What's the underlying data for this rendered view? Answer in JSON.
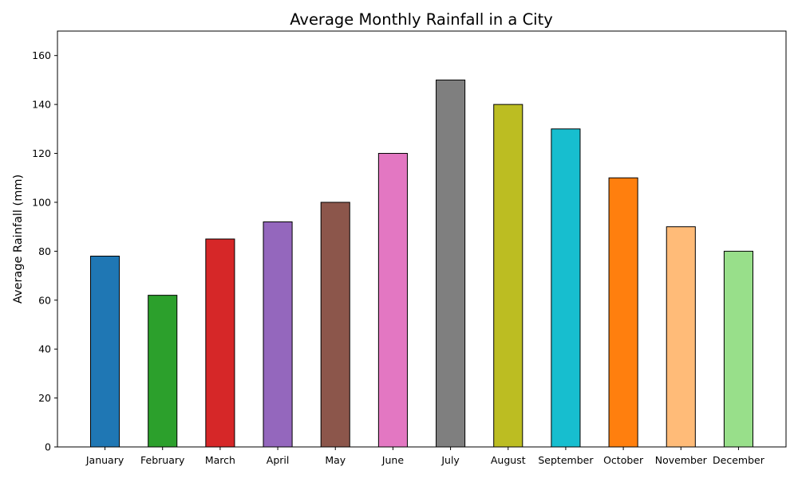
{
  "chart_data": {
    "type": "bar",
    "title": "Average Monthly Rainfall in a City",
    "xlabel": "",
    "ylabel": "Average Rainfall (mm)",
    "categories": [
      "January",
      "February",
      "March",
      "April",
      "May",
      "June",
      "July",
      "August",
      "September",
      "October",
      "November",
      "December"
    ],
    "values": [
      78,
      62,
      85,
      92,
      100,
      120,
      150,
      140,
      130,
      110,
      90,
      80
    ],
    "colors": [
      "#1f77b4",
      "#2ca02c",
      "#d62728",
      "#9467bd",
      "#8c564b",
      "#e377c2",
      "#7f7f7f",
      "#bcbd22",
      "#17becf",
      "#ff7f0e",
      "#ffbb78",
      "#98df8a"
    ],
    "ylim": [
      0,
      170
    ],
    "yticks": [
      0,
      20,
      40,
      60,
      80,
      100,
      120,
      140,
      160
    ],
    "grid": false,
    "bar_edge_color": "#000000"
  }
}
